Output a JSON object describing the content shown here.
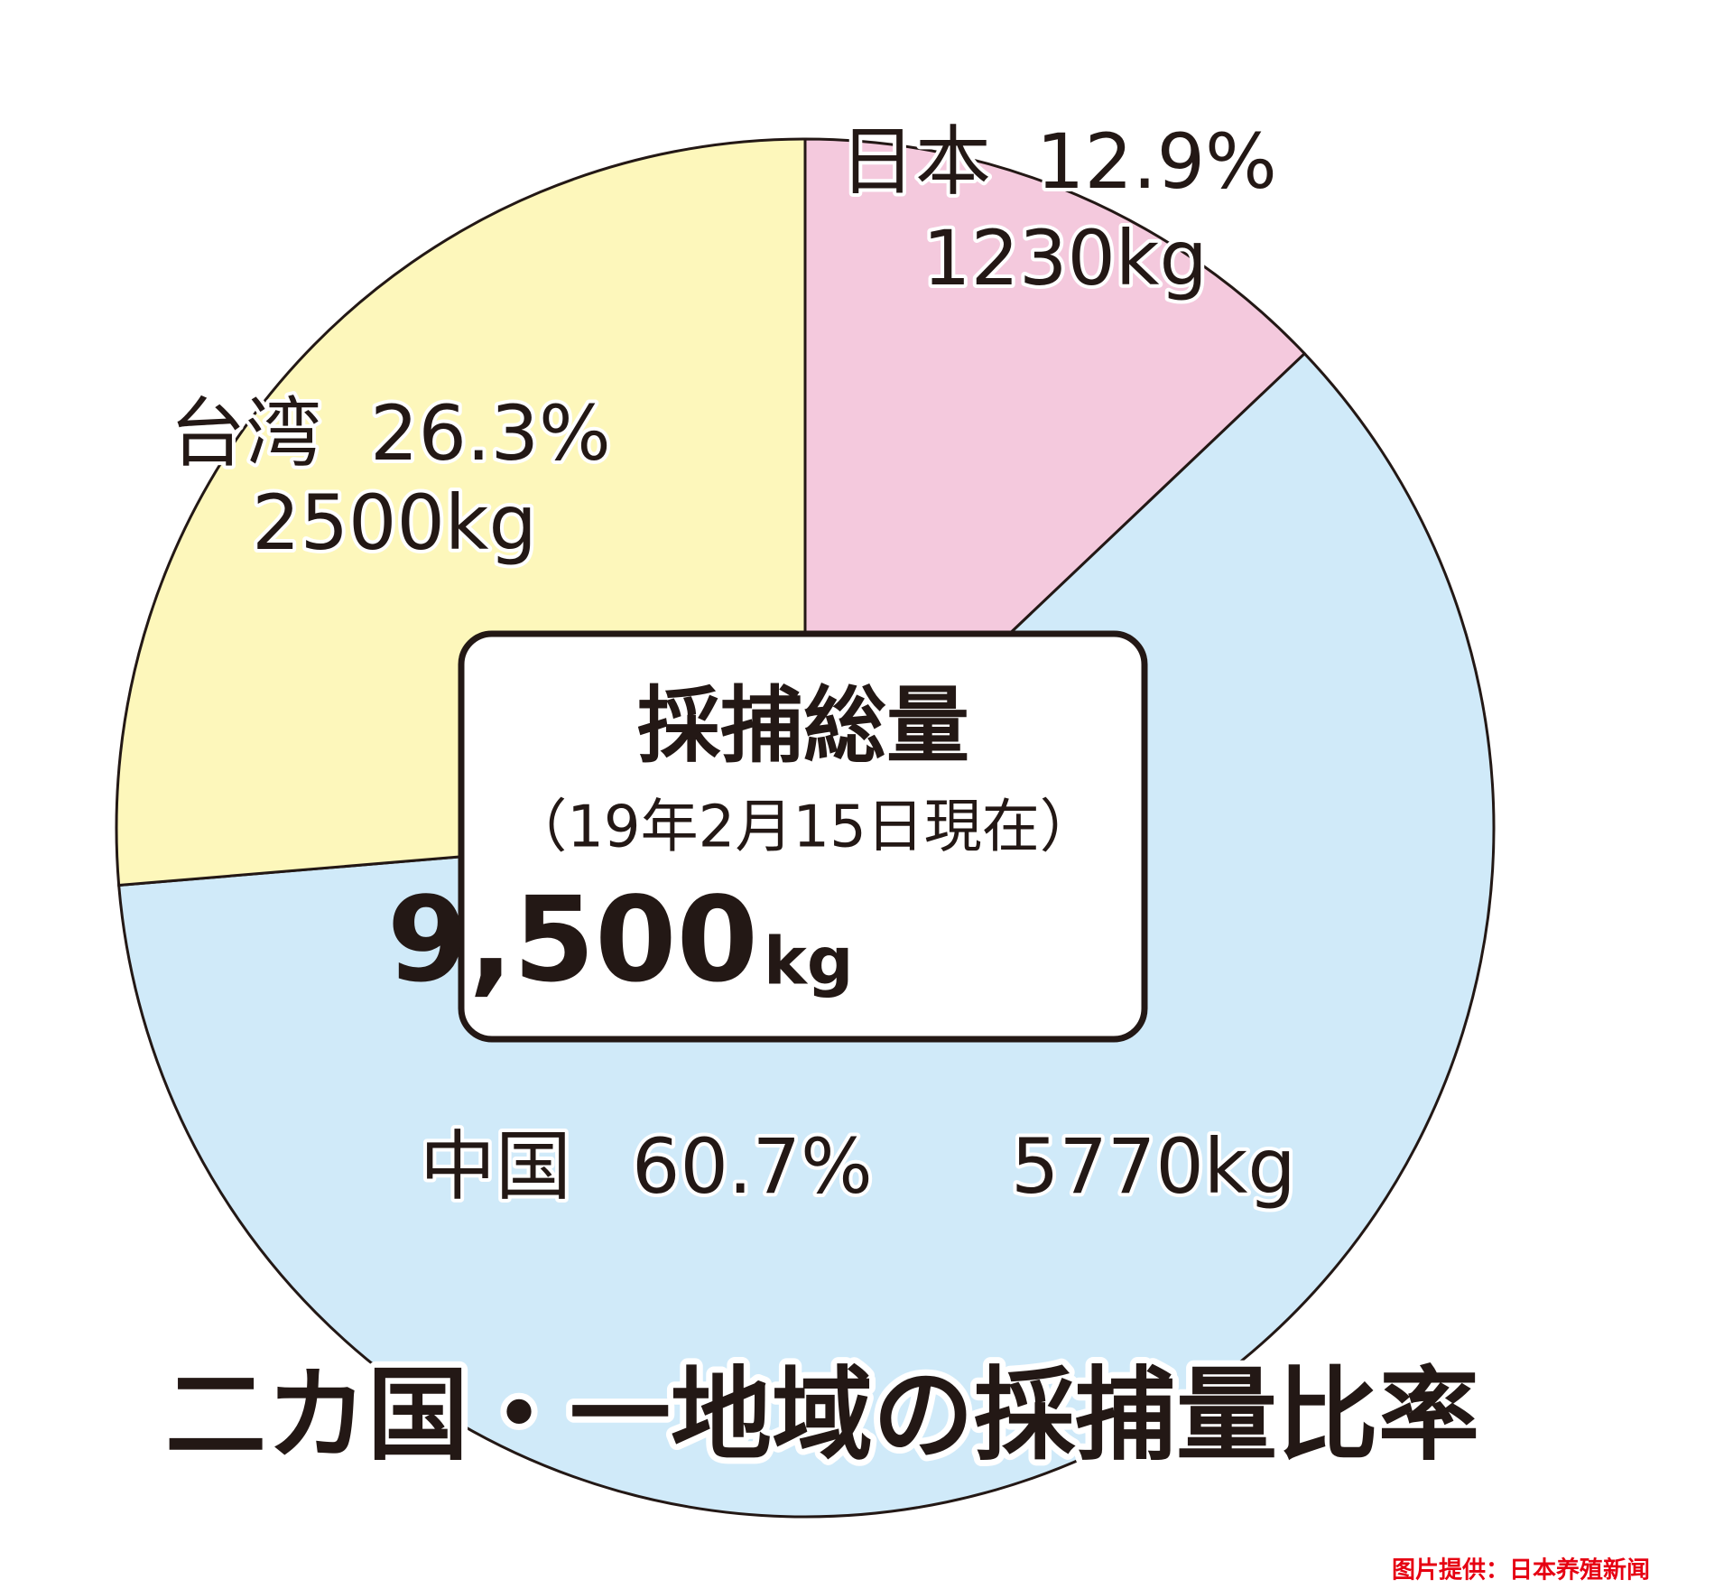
{
  "chart_data": {
    "type": "pie",
    "title": "二カ国・一地域の採捕量比率",
    "categories": [
      "日本",
      "中国",
      "台湾"
    ],
    "values": [
      12.9,
      60.7,
      26.3
    ],
    "value_labels": [
      "12.9%",
      "60.7%",
      "26.3%"
    ],
    "weight_labels": [
      "1230kg",
      "5770kg",
      "2500kg"
    ],
    "colors": [
      "#f4c9dd",
      "#d0eaf9",
      "#fdf7bb"
    ],
    "start_angle": 0,
    "direction": "clockwise",
    "center_box": {
      "heading": "採捕総量",
      "date": "（19年2月15日現在）",
      "total": "9,500",
      "unit": "kg"
    },
    "credit": "图片提供：日本养殖新闻"
  }
}
